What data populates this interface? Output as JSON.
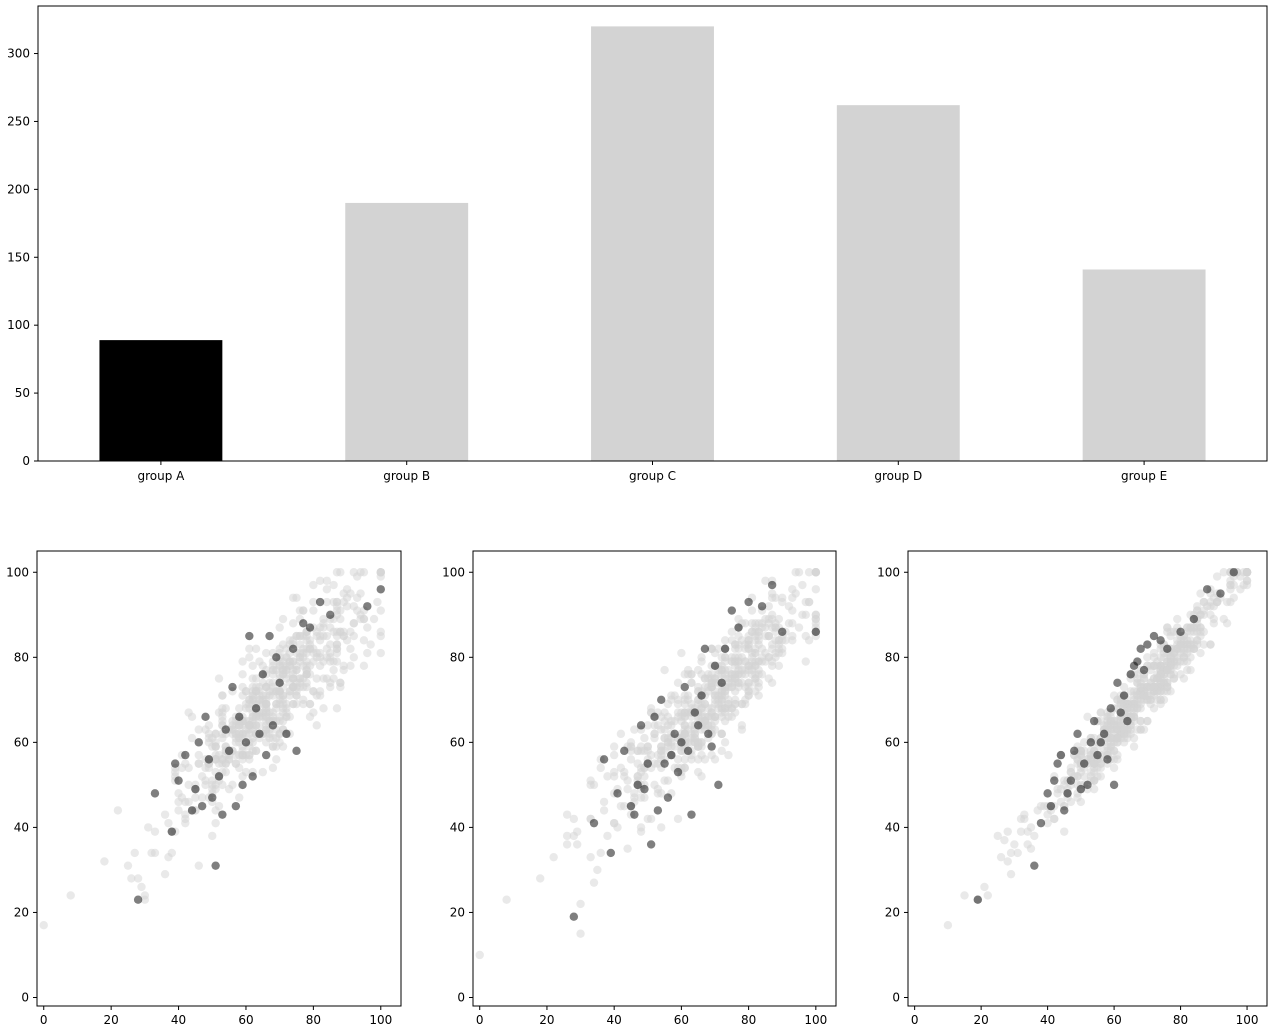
{
  "chart_data": [
    {
      "type": "bar",
      "categories": [
        "group A",
        "group B",
        "group C",
        "group D",
        "group E"
      ],
      "values": [
        89,
        190,
        320,
        262,
        141
      ],
      "colors": [
        "#000000",
        "#d3d3d3",
        "#d3d3d3",
        "#d3d3d3",
        "#d3d3d3"
      ],
      "ylim": [
        0,
        335
      ],
      "yticks": [
        0,
        50,
        100,
        150,
        200,
        250,
        300
      ],
      "grid": false
    },
    {
      "type": "scatter",
      "xlim": [
        -2,
        106
      ],
      "ylim": [
        -2,
        105
      ],
      "xticks": [
        0,
        20,
        40,
        60,
        80,
        100
      ],
      "yticks": [
        0,
        20,
        40,
        60,
        80,
        100
      ],
      "background_color": "#d3d3d3",
      "highlight_color": "#000000",
      "background_alpha": 0.5,
      "highlight_alpha": 0.5,
      "background_points": {
        "n": 600,
        "x_mean": 68,
        "x_sd": 15,
        "slope": 0.8,
        "intercept": 16,
        "noise_sd": 6.7,
        "outliers": [
          [
            0,
            17
          ],
          [
            8,
            24
          ],
          [
            18,
            32
          ],
          [
            22,
            44
          ],
          [
            25,
            31
          ],
          [
            27,
            34
          ],
          [
            29,
            26
          ],
          [
            30,
            23
          ],
          [
            32,
            34
          ],
          [
            36,
            29
          ]
        ]
      },
      "highlight_points": [
        [
          28,
          23
        ],
        [
          33,
          48
        ],
        [
          38,
          39
        ],
        [
          39,
          55
        ],
        [
          40,
          51
        ],
        [
          42,
          57
        ],
        [
          44,
          44
        ],
        [
          45,
          49
        ],
        [
          46,
          60
        ],
        [
          47,
          45
        ],
        [
          48,
          66
        ],
        [
          49,
          56
        ],
        [
          50,
          47
        ],
        [
          51,
          31
        ],
        [
          52,
          52
        ],
        [
          53,
          43
        ],
        [
          54,
          63
        ],
        [
          55,
          58
        ],
        [
          56,
          73
        ],
        [
          57,
          45
        ],
        [
          58,
          66
        ],
        [
          59,
          50
        ],
        [
          60,
          60
        ],
        [
          61,
          85
        ],
        [
          62,
          52
        ],
        [
          63,
          68
        ],
        [
          64,
          62
        ],
        [
          65,
          76
        ],
        [
          66,
          57
        ],
        [
          67,
          85
        ],
        [
          68,
          64
        ],
        [
          69,
          80
        ],
        [
          70,
          74
        ],
        [
          72,
          62
        ],
        [
          74,
          82
        ],
        [
          75,
          58
        ],
        [
          77,
          88
        ],
        [
          79,
          87
        ],
        [
          82,
          93
        ],
        [
          85,
          90
        ],
        [
          96,
          92
        ],
        [
          100,
          96
        ]
      ]
    },
    {
      "type": "scatter",
      "xlim": [
        -2,
        106
      ],
      "ylim": [
        -2,
        105
      ],
      "xticks": [
        0,
        20,
        40,
        60,
        80,
        100
      ],
      "yticks": [
        0,
        20,
        40,
        60,
        80,
        100
      ],
      "background_color": "#d3d3d3",
      "highlight_color": "#000000",
      "background_alpha": 0.5,
      "highlight_alpha": 0.5,
      "background_points": {
        "n": 600,
        "x_mean": 68,
        "x_sd": 15,
        "slope": 0.78,
        "intercept": 16,
        "noise_sd": 6.5,
        "outliers": [
          [
            0,
            10
          ],
          [
            8,
            23
          ],
          [
            18,
            28
          ],
          [
            22,
            33
          ],
          [
            26,
            38
          ],
          [
            28,
            42
          ],
          [
            30,
            15
          ],
          [
            30,
            22
          ],
          [
            34,
            27
          ],
          [
            36,
            34
          ]
        ]
      },
      "highlight_points": [
        [
          28,
          19
        ],
        [
          34,
          41
        ],
        [
          37,
          56
        ],
        [
          39,
          34
        ],
        [
          41,
          48
        ],
        [
          43,
          58
        ],
        [
          45,
          45
        ],
        [
          46,
          43
        ],
        [
          47,
          50
        ],
        [
          48,
          64
        ],
        [
          49,
          49
        ],
        [
          50,
          55
        ],
        [
          51,
          36
        ],
        [
          52,
          66
        ],
        [
          53,
          44
        ],
        [
          54,
          70
        ],
        [
          55,
          55
        ],
        [
          56,
          47
        ],
        [
          57,
          57
        ],
        [
          58,
          62
        ],
        [
          59,
          53
        ],
        [
          60,
          60
        ],
        [
          61,
          73
        ],
        [
          62,
          58
        ],
        [
          63,
          43
        ],
        [
          64,
          67
        ],
        [
          65,
          64
        ],
        [
          66,
          71
        ],
        [
          67,
          82
        ],
        [
          68,
          62
        ],
        [
          69,
          59
        ],
        [
          70,
          78
        ],
        [
          71,
          50
        ],
        [
          72,
          74
        ],
        [
          73,
          82
        ],
        [
          75,
          91
        ],
        [
          77,
          87
        ],
        [
          80,
          93
        ],
        [
          84,
          92
        ],
        [
          87,
          97
        ],
        [
          90,
          86
        ],
        [
          100,
          86
        ]
      ]
    },
    {
      "type": "scatter",
      "xlim": [
        -2,
        106
      ],
      "ylim": [
        -2,
        105
      ],
      "xticks": [
        0,
        20,
        40,
        60,
        80,
        100
      ],
      "yticks": [
        0,
        20,
        40,
        60,
        80,
        100
      ],
      "background_color": "#d3d3d3",
      "highlight_color": "#000000",
      "background_alpha": 0.5,
      "highlight_alpha": 0.5,
      "background_points": {
        "n": 600,
        "x_mean": 68,
        "x_sd": 15,
        "slope": 0.95,
        "intercept": 6,
        "noise_sd": 3.6,
        "outliers": [
          [
            10,
            17
          ],
          [
            15,
            24
          ],
          [
            19,
            23
          ],
          [
            21,
            26
          ],
          [
            22,
            24
          ],
          [
            25,
            38
          ],
          [
            28,
            32
          ],
          [
            30,
            36
          ],
          [
            32,
            39
          ],
          [
            35,
            40
          ]
        ]
      },
      "highlight_points": [
        [
          19,
          23
        ],
        [
          36,
          31
        ],
        [
          38,
          41
        ],
        [
          40,
          48
        ],
        [
          41,
          45
        ],
        [
          42,
          51
        ],
        [
          43,
          55
        ],
        [
          44,
          57
        ],
        [
          45,
          44
        ],
        [
          46,
          48
        ],
        [
          47,
          51
        ],
        [
          48,
          58
        ],
        [
          49,
          62
        ],
        [
          50,
          49
        ],
        [
          51,
          55
        ],
        [
          52,
          50
        ],
        [
          53,
          60
        ],
        [
          54,
          65
        ],
        [
          55,
          57
        ],
        [
          56,
          60
        ],
        [
          57,
          62
        ],
        [
          58,
          56
        ],
        [
          59,
          68
        ],
        [
          60,
          50
        ],
        [
          61,
          74
        ],
        [
          62,
          67
        ],
        [
          63,
          71
        ],
        [
          64,
          65
        ],
        [
          65,
          76
        ],
        [
          66,
          78
        ],
        [
          67,
          79
        ],
        [
          68,
          82
        ],
        [
          69,
          77
        ],
        [
          70,
          83
        ],
        [
          72,
          85
        ],
        [
          74,
          84
        ],
        [
          76,
          82
        ],
        [
          80,
          86
        ],
        [
          84,
          89
        ],
        [
          88,
          96
        ],
        [
          92,
          95
        ],
        [
          96,
          100
        ]
      ]
    }
  ]
}
